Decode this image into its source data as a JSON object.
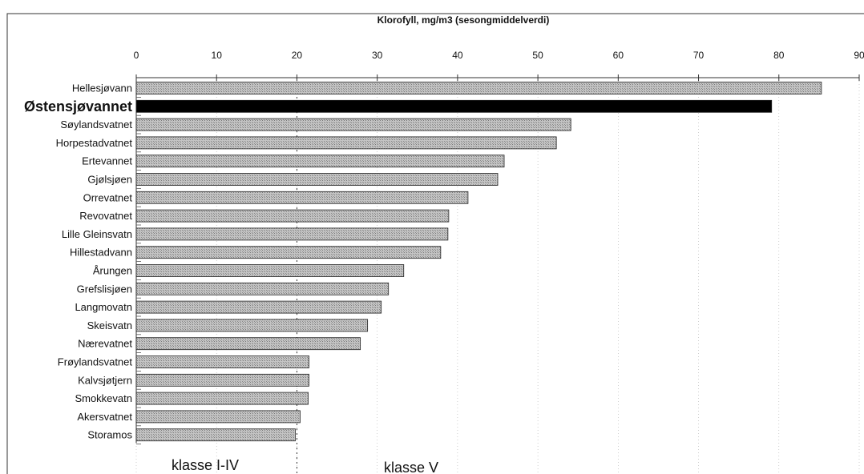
{
  "chart_data": {
    "type": "bar",
    "orientation": "horizontal",
    "title": "Klorofyll, mg/m3  (sesongmiddelverdi)",
    "xlim": [
      0,
      90
    ],
    "x_ticks": [
      "0",
      "10",
      "20",
      "30",
      "40",
      "50",
      "60",
      "70",
      "80",
      "90"
    ],
    "categories": [
      "Hellesjøvann",
      "Østensjøvannet",
      "Søylandsvatnet",
      "Horpestadvatnet",
      "Ertevannet",
      "Gjølsjøen",
      "Orrevatnet",
      "Revovatnet",
      "Lille Gleinsvatn",
      "Hillestadvann",
      "Årungen",
      "Grefslisjøen",
      "Langmovatn",
      "Skeisvatn",
      "Nærevatnet",
      "Frøylandsvatnet",
      "Kalvsjøtjern",
      "Smokkevatn",
      "Akersvatnet",
      "Storamos"
    ],
    "values": [
      85.3,
      79.1,
      54.1,
      52.3,
      45.8,
      45.0,
      41.3,
      38.9,
      38.8,
      37.9,
      33.3,
      31.4,
      30.5,
      28.8,
      27.9,
      21.5,
      21.5,
      21.4,
      20.4,
      19.8
    ],
    "highlight_category": "Østensjøvannet",
    "reference_line": 20,
    "annotations": [
      "klasse I-IV",
      "klasse V"
    ],
    "colors": {
      "bar": "#b8b8b8",
      "highlight": "#000000",
      "axis": "#333333"
    }
  }
}
